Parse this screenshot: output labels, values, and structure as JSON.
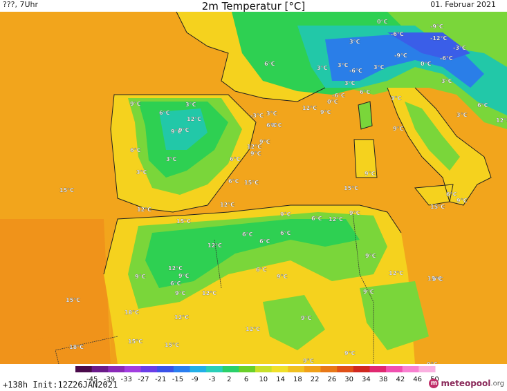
{
  "header": {
    "left": "???, 7Uhr",
    "title": "2m Temperatur [°C]",
    "date": "01. Februar 2021"
  },
  "footer": {
    "run": "+138h  Init:12Z26JAN2021"
  },
  "logo": {
    "name": "meteopool",
    "tld": ".org"
  },
  "legend": {
    "ticks": [
      "-45",
      "-39",
      "-33",
      "-27",
      "-21",
      "-15",
      "-9",
      "-3",
      "2",
      "6",
      "10",
      "14",
      "18",
      "22",
      "26",
      "30",
      "34",
      "38",
      "42",
      "46",
      "50"
    ],
    "colors": [
      "#4a0a4a",
      "#6b1a8a",
      "#8a2ab8",
      "#a23ee0",
      "#6a3ee8",
      "#3a52e8",
      "#2a7ef0",
      "#22b0e8",
      "#2acfb8",
      "#2ad06a",
      "#6ad02a",
      "#c8e02a",
      "#f0e02a",
      "#f0c020",
      "#f0a018",
      "#e87818",
      "#e05018",
      "#d02820",
      "#e02870",
      "#f050b0",
      "#f880d0",
      "#fab0e0"
    ]
  },
  "map": {
    "colors": {
      "sea": "#f2a51c",
      "sea_warm": "#f0931a",
      "land_mild": "#f5d21e",
      "land_cool": "#7ad63a",
      "land_cold": "#2ed052",
      "mountain_cold": "#22c8a8",
      "alps_freeze": "#2a7ee8",
      "alps_deep": "#3a5ee8",
      "coast": "#202020"
    },
    "labels": [
      {
        "t": "0°C"
      },
      {
        "t": "-9°C"
      },
      {
        "t": "3°C"
      },
      {
        "t": "-6°C"
      },
      {
        "t": "-12°C"
      },
      {
        "t": "-3°C"
      },
      {
        "t": "-9°C"
      },
      {
        "t": "-6°C"
      },
      {
        "t": "6°C"
      },
      {
        "t": "3°C"
      },
      {
        "t": "3°C"
      },
      {
        "t": "-6°C"
      },
      {
        "t": "3°C"
      },
      {
        "t": "0°C"
      },
      {
        "t": "3°C"
      },
      {
        "t": "3°C"
      },
      {
        "t": "-6°C"
      },
      {
        "t": "6°C"
      },
      {
        "t": "0°C"
      },
      {
        "t": "3°C"
      },
      {
        "t": "12°C"
      },
      {
        "t": "9°C"
      },
      {
        "t": "6°C"
      },
      {
        "t": "3°C"
      },
      {
        "t": "9°C"
      },
      {
        "t": "-3°C"
      },
      {
        "t": "12°C"
      },
      {
        "t": "9°C"
      },
      {
        "t": "6°C"
      },
      {
        "t": "3°C"
      },
      {
        "t": "3°C"
      },
      {
        "t": "0°C"
      },
      {
        "t": "6°C"
      },
      {
        "t": "9°C"
      },
      {
        "t": "9°C"
      },
      {
        "t": "12°C"
      },
      {
        "t": "12°C"
      },
      {
        "t": "9°C"
      },
      {
        "t": "6°C"
      },
      {
        "t": "3°C"
      },
      {
        "t": "6°C"
      },
      {
        "t": "3°C"
      },
      {
        "t": "9°C"
      },
      {
        "t": "6°C"
      },
      {
        "t": "9°C"
      },
      {
        "t": "15°C"
      },
      {
        "t": "6°C"
      },
      {
        "t": "9°C"
      },
      {
        "t": "15°C"
      },
      {
        "t": "15°C"
      },
      {
        "t": "12°C"
      },
      {
        "t": "15°C"
      },
      {
        "t": "12°C"
      },
      {
        "t": "15°C"
      },
      {
        "t": "9°C"
      },
      {
        "t": "6°C"
      },
      {
        "t": "12°C"
      },
      {
        "t": "9°C"
      },
      {
        "t": "6°C"
      },
      {
        "t": "6°C"
      },
      {
        "t": "12°C"
      },
      {
        "t": "6°C"
      },
      {
        "t": "9°C"
      },
      {
        "t": "12°C"
      },
      {
        "t": "9°C"
      },
      {
        "t": "6°C"
      },
      {
        "t": "9°C"
      },
      {
        "t": "12°C"
      },
      {
        "t": "9°C"
      },
      {
        "t": "9°C"
      },
      {
        "t": "15°C"
      },
      {
        "t": "18°C"
      },
      {
        "t": "12°C"
      },
      {
        "t": "12°C"
      },
      {
        "t": "9°C"
      },
      {
        "t": "6°C"
      },
      {
        "t": "12°C"
      },
      {
        "t": "15°C"
      },
      {
        "t": "15°C"
      },
      {
        "t": "18°C"
      },
      {
        "t": "9°C"
      },
      {
        "t": "9°C"
      },
      {
        "t": "9°C"
      },
      {
        "t": "15°C"
      },
      {
        "t": "9°C"
      },
      {
        "t": "9°C"
      }
    ]
  }
}
